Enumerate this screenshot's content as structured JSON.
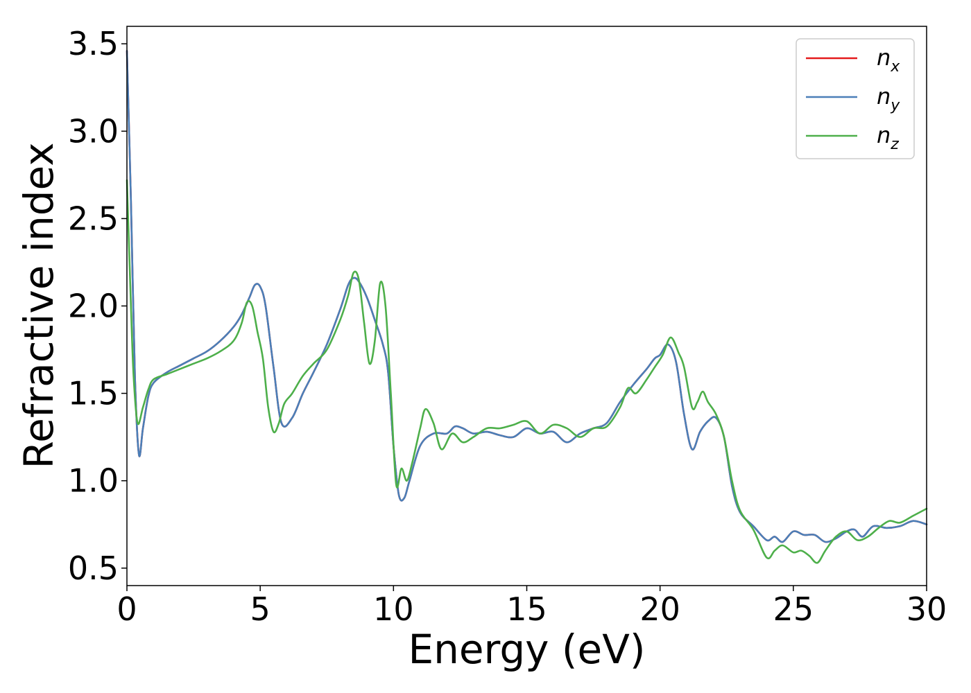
{
  "chart_data": {
    "type": "line",
    "title": "",
    "xlabel": "Energy (eV)",
    "ylabel": "Refractive index",
    "xlim": [
      0,
      30
    ],
    "ylim": [
      0.4,
      3.6
    ],
    "xticks": [
      "0",
      "5",
      "10",
      "15",
      "20",
      "25",
      "30"
    ],
    "yticks": [
      "0.5",
      "1.0",
      "1.5",
      "2.0",
      "2.5",
      "3.0",
      "3.5"
    ],
    "grid": false,
    "legend_position": "top-right",
    "series": [
      {
        "name": "n_x",
        "legend_base": "n",
        "legend_sub": "x",
        "color": "#e41a1c",
        "x": [
          0,
          0.15,
          0.3,
          0.45,
          0.6,
          0.8,
          1.0,
          1.5,
          2.0,
          2.5,
          3.0,
          3.5,
          4.0,
          4.3,
          4.6,
          4.8,
          5.0,
          5.2,
          5.5,
          5.8,
          6.2,
          6.6,
          7.0,
          7.5,
          8.0,
          8.3,
          8.5,
          8.7,
          9.0,
          9.3,
          9.6,
          9.8,
          10.0,
          10.2,
          10.4,
          10.6,
          11.0,
          11.5,
          12.0,
          12.3,
          12.6,
          13.0,
          13.5,
          14.0,
          14.5,
          15.0,
          15.5,
          16.0,
          16.5,
          17.0,
          17.5,
          18.0,
          18.5,
          19.0,
          19.5,
          19.8,
          20.0,
          20.3,
          20.6,
          20.9,
          21.2,
          21.5,
          21.8,
          22.1,
          22.4,
          22.7,
          23.0,
          23.5,
          24.0,
          24.3,
          24.6,
          25.0,
          25.4,
          25.8,
          26.2,
          26.6,
          27.0,
          27.3,
          27.6,
          28.0,
          28.5,
          29.0,
          29.5,
          30.0
        ],
        "values": [
          3.46,
          2.6,
          1.6,
          1.15,
          1.3,
          1.48,
          1.56,
          1.62,
          1.66,
          1.7,
          1.74,
          1.8,
          1.88,
          1.95,
          2.05,
          2.12,
          2.11,
          2.0,
          1.65,
          1.33,
          1.36,
          1.5,
          1.62,
          1.78,
          1.98,
          2.12,
          2.16,
          2.14,
          2.05,
          1.92,
          1.78,
          1.62,
          1.2,
          0.92,
          0.9,
          1.0,
          1.2,
          1.27,
          1.27,
          1.31,
          1.3,
          1.27,
          1.28,
          1.26,
          1.25,
          1.3,
          1.27,
          1.28,
          1.22,
          1.27,
          1.3,
          1.33,
          1.45,
          1.55,
          1.64,
          1.7,
          1.72,
          1.78,
          1.68,
          1.38,
          1.18,
          1.28,
          1.34,
          1.36,
          1.25,
          0.97,
          0.82,
          0.74,
          0.66,
          0.68,
          0.65,
          0.71,
          0.69,
          0.69,
          0.65,
          0.67,
          0.71,
          0.72,
          0.68,
          0.74,
          0.73,
          0.74,
          0.77,
          0.75
        ]
      },
      {
        "name": "n_y",
        "legend_base": "n",
        "legend_sub": "y",
        "color": "#4a7fb8",
        "x": [
          0,
          0.15,
          0.3,
          0.45,
          0.6,
          0.8,
          1.0,
          1.5,
          2.0,
          2.5,
          3.0,
          3.5,
          4.0,
          4.3,
          4.6,
          4.8,
          5.0,
          5.2,
          5.5,
          5.8,
          6.2,
          6.6,
          7.0,
          7.5,
          8.0,
          8.3,
          8.5,
          8.7,
          9.0,
          9.3,
          9.6,
          9.8,
          10.0,
          10.2,
          10.4,
          10.6,
          11.0,
          11.5,
          12.0,
          12.3,
          12.6,
          13.0,
          13.5,
          14.0,
          14.5,
          15.0,
          15.5,
          16.0,
          16.5,
          17.0,
          17.5,
          18.0,
          18.5,
          19.0,
          19.5,
          19.8,
          20.0,
          20.3,
          20.6,
          20.9,
          21.2,
          21.5,
          21.8,
          22.1,
          22.4,
          22.7,
          23.0,
          23.5,
          24.0,
          24.3,
          24.6,
          25.0,
          25.4,
          25.8,
          26.2,
          26.6,
          27.0,
          27.3,
          27.6,
          28.0,
          28.5,
          29.0,
          29.5,
          30.0
        ],
        "values": [
          3.46,
          2.6,
          1.6,
          1.15,
          1.3,
          1.48,
          1.56,
          1.62,
          1.66,
          1.7,
          1.74,
          1.8,
          1.88,
          1.95,
          2.05,
          2.12,
          2.11,
          2.0,
          1.65,
          1.33,
          1.36,
          1.5,
          1.62,
          1.78,
          1.98,
          2.12,
          2.16,
          2.14,
          2.05,
          1.92,
          1.78,
          1.62,
          1.2,
          0.92,
          0.9,
          1.0,
          1.2,
          1.27,
          1.27,
          1.31,
          1.3,
          1.27,
          1.28,
          1.26,
          1.25,
          1.3,
          1.27,
          1.28,
          1.22,
          1.27,
          1.3,
          1.33,
          1.45,
          1.55,
          1.64,
          1.7,
          1.72,
          1.78,
          1.68,
          1.38,
          1.18,
          1.28,
          1.34,
          1.36,
          1.25,
          0.97,
          0.82,
          0.74,
          0.66,
          0.68,
          0.65,
          0.71,
          0.69,
          0.69,
          0.65,
          0.67,
          0.71,
          0.72,
          0.68,
          0.74,
          0.73,
          0.74,
          0.77,
          0.75
        ]
      },
      {
        "name": "n_z",
        "legend_base": "n",
        "legend_sub": "z",
        "color": "#4daf4a",
        "x": [
          0,
          0.15,
          0.25,
          0.4,
          0.6,
          0.8,
          1.0,
          1.5,
          2.0,
          2.5,
          3.0,
          3.5,
          4.0,
          4.3,
          4.5,
          4.7,
          4.9,
          5.1,
          5.3,
          5.5,
          5.7,
          5.9,
          6.2,
          6.6,
          7.0,
          7.5,
          8.0,
          8.3,
          8.5,
          8.7,
          8.9,
          9.1,
          9.3,
          9.5,
          9.7,
          9.9,
          10.1,
          10.3,
          10.5,
          10.7,
          11.0,
          11.2,
          11.5,
          11.8,
          12.2,
          12.6,
          13.0,
          13.5,
          14.0,
          14.5,
          15.0,
          15.5,
          16.0,
          16.5,
          17.0,
          17.5,
          18.0,
          18.5,
          18.8,
          19.1,
          19.5,
          19.8,
          20.1,
          20.4,
          20.7,
          20.9,
          21.2,
          21.4,
          21.6,
          21.8,
          22.1,
          22.4,
          22.7,
          23.0,
          23.5,
          24.0,
          24.3,
          24.6,
          25.0,
          25.3,
          25.6,
          25.9,
          26.2,
          26.6,
          27.0,
          27.4,
          27.8,
          28.2,
          28.6,
          29.0,
          29.5,
          30.0
        ],
        "values": [
          2.72,
          2.0,
          1.6,
          1.33,
          1.42,
          1.52,
          1.58,
          1.61,
          1.64,
          1.67,
          1.7,
          1.74,
          1.8,
          1.9,
          2.02,
          2.0,
          1.85,
          1.7,
          1.42,
          1.28,
          1.33,
          1.44,
          1.5,
          1.6,
          1.67,
          1.75,
          1.92,
          2.06,
          2.19,
          2.15,
          1.9,
          1.67,
          1.8,
          2.13,
          2.0,
          1.5,
          0.98,
          1.07,
          1.0,
          1.1,
          1.3,
          1.41,
          1.33,
          1.18,
          1.27,
          1.22,
          1.25,
          1.3,
          1.3,
          1.32,
          1.34,
          1.27,
          1.32,
          1.3,
          1.25,
          1.3,
          1.31,
          1.42,
          1.53,
          1.5,
          1.58,
          1.65,
          1.72,
          1.82,
          1.73,
          1.65,
          1.42,
          1.45,
          1.51,
          1.45,
          1.38,
          1.25,
          1.0,
          0.83,
          0.72,
          0.56,
          0.6,
          0.63,
          0.59,
          0.6,
          0.57,
          0.53,
          0.6,
          0.68,
          0.71,
          0.66,
          0.68,
          0.73,
          0.77,
          0.76,
          0.8,
          0.84
        ]
      }
    ]
  }
}
